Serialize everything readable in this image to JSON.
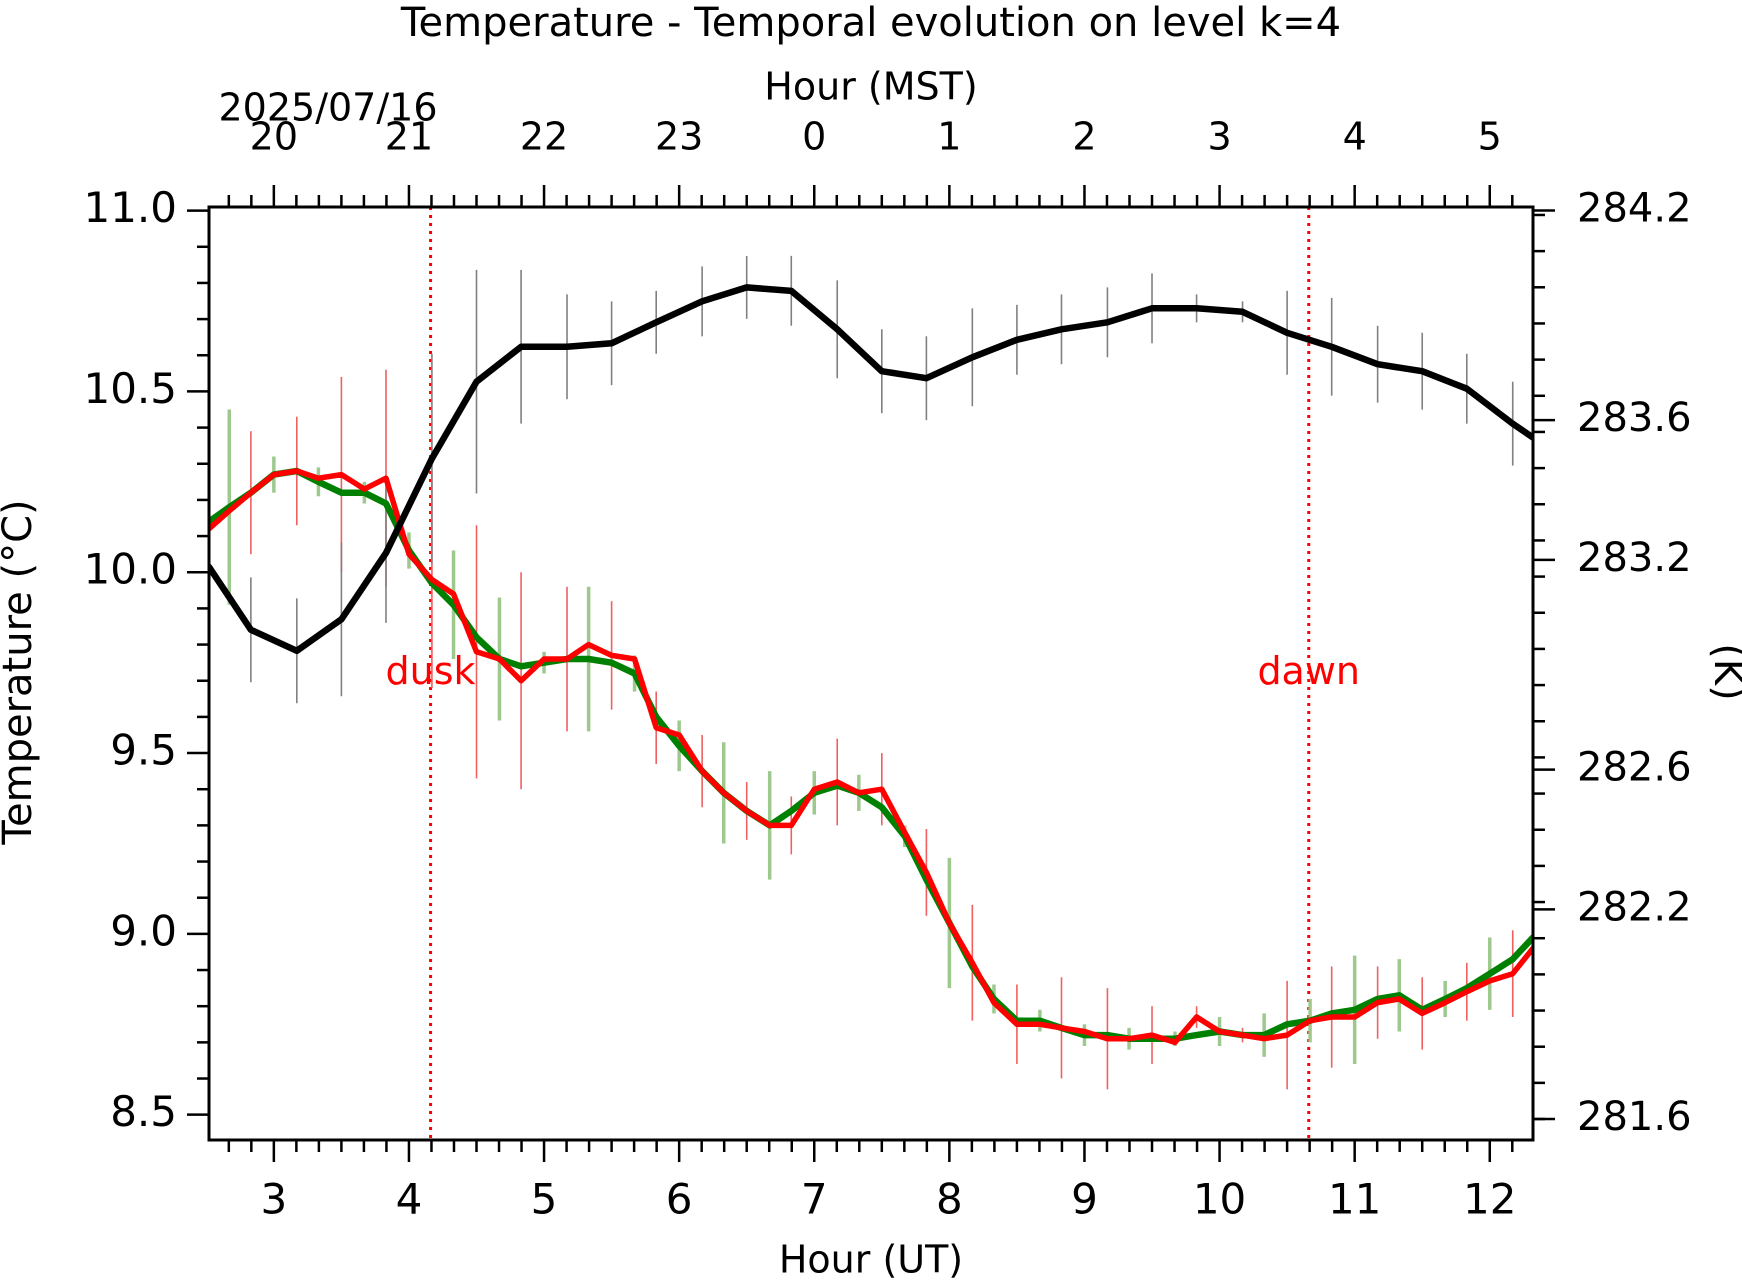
{
  "chart_data": {
    "type": "line",
    "title": "Temperature - Temporal evolution on level k=4",
    "xlabel": "Hour (UT)",
    "x2label": "Hour (MST)",
    "date_label": "2025/07/16",
    "ylabel": "Temperature (°C)",
    "y2label": "(K)",
    "xlim": [
      2.52,
      12.32
    ],
    "xticks": [
      3,
      4,
      5,
      6,
      7,
      8,
      9,
      10,
      11,
      12
    ],
    "x2ticks": [
      {
        "value": 3,
        "label": "20"
      },
      {
        "value": 4,
        "label": "21"
      },
      {
        "value": 5,
        "label": "22"
      },
      {
        "value": 6,
        "label": "23"
      },
      {
        "value": 7,
        "label": "0"
      },
      {
        "value": 8,
        "label": "1"
      },
      {
        "value": 9,
        "label": "2"
      },
      {
        "value": 10,
        "label": "3"
      },
      {
        "value": 11,
        "label": "4"
      },
      {
        "value": 12,
        "label": "5"
      }
    ],
    "ylim": [
      8.43,
      11.01
    ],
    "yticks": [
      {
        "value": 8.5,
        "label": "8.5"
      },
      {
        "value": 9,
        "label": "9.0"
      },
      {
        "value": 9.5,
        "label": "9.5"
      },
      {
        "value": 10,
        "label": "10.0"
      },
      {
        "value": 10.5,
        "label": "10.5"
      },
      {
        "value": 11,
        "label": "11.0"
      }
    ],
    "y2lim": [
      281.54,
      284.21
    ],
    "y2ticks": [
      281.6,
      282.2,
      282.6,
      283.2,
      283.6,
      284.2
    ],
    "vlines": [
      {
        "x": 4.16,
        "label": "dusk",
        "color": "#ff0000"
      },
      {
        "x": 10.66,
        "label": "dawn",
        "color": "#ff0000"
      }
    ],
    "series": [
      {
        "color": "#008000",
        "errcolor": "#9ec98e",
        "axis": "y",
        "x": [
          2.52,
          2.67,
          2.83,
          3.0,
          3.17,
          3.33,
          3.5,
          3.67,
          3.83,
          4.0,
          4.17,
          4.33,
          4.5,
          4.67,
          4.83,
          5.0,
          5.17,
          5.33,
          5.5,
          5.67,
          5.83,
          6.0,
          6.17,
          6.33,
          6.5,
          6.67,
          6.83,
          7.0,
          7.17,
          7.33,
          7.5,
          7.67,
          7.83,
          8.0,
          8.17,
          8.33,
          8.5,
          8.67,
          8.83,
          9.0,
          9.17,
          9.33,
          9.5,
          9.67,
          9.83,
          10.0,
          10.17,
          10.33,
          10.5,
          10.67,
          10.83,
          11.0,
          11.17,
          11.33,
          11.5,
          11.67,
          11.83,
          12.0,
          12.17,
          12.32
        ],
        "values": [
          10.14,
          10.18,
          10.22,
          10.27,
          10.28,
          10.25,
          10.22,
          10.22,
          10.19,
          10.06,
          9.97,
          9.91,
          9.82,
          9.76,
          9.74,
          9.75,
          9.76,
          9.76,
          9.75,
          9.72,
          9.6,
          9.52,
          9.45,
          9.39,
          9.34,
          9.3,
          9.34,
          9.39,
          9.41,
          9.39,
          9.35,
          9.27,
          9.15,
          9.03,
          8.91,
          8.82,
          8.76,
          8.76,
          8.74,
          8.72,
          8.72,
          8.71,
          8.71,
          8.71,
          8.72,
          8.73,
          8.72,
          8.72,
          8.75,
          8.76,
          8.78,
          8.79,
          8.82,
          8.83,
          8.79,
          8.82,
          8.85,
          8.89,
          8.93,
          8.99
        ],
        "errors": [
          null,
          0.27,
          null,
          0.05,
          null,
          0.04,
          null,
          0.03,
          null,
          0.05,
          null,
          0.15,
          null,
          0.17,
          null,
          0.03,
          null,
          0.2,
          null,
          0.05,
          null,
          0.07,
          null,
          0.14,
          null,
          0.15,
          null,
          0.06,
          null,
          0.05,
          null,
          0.03,
          null,
          0.18,
          null,
          0.04,
          null,
          0.03,
          null,
          0.03,
          null,
          0.03,
          null,
          0.02,
          null,
          0.04,
          null,
          0.06,
          null,
          0.06,
          null,
          0.15,
          null,
          0.1,
          null,
          0.05,
          null,
          0.1,
          null,
          null
        ]
      },
      {
        "color": "#ff0000",
        "errcolor": "#f06060",
        "axis": "y",
        "x": [
          2.52,
          2.67,
          2.83,
          3.0,
          3.17,
          3.33,
          3.5,
          3.67,
          3.83,
          4.0,
          4.17,
          4.33,
          4.5,
          4.67,
          4.83,
          5.0,
          5.17,
          5.33,
          5.5,
          5.67,
          5.83,
          6.0,
          6.17,
          6.33,
          6.5,
          6.67,
          6.83,
          7.0,
          7.17,
          7.33,
          7.5,
          7.67,
          7.83,
          8.0,
          8.17,
          8.33,
          8.5,
          8.67,
          8.83,
          9.0,
          9.17,
          9.33,
          9.5,
          9.67,
          9.83,
          10.0,
          10.17,
          10.33,
          10.5,
          10.67,
          10.83,
          11.0,
          11.17,
          11.33,
          11.5,
          11.67,
          11.83,
          12.0,
          12.17,
          12.32
        ],
        "values": [
          10.12,
          10.17,
          10.22,
          10.27,
          10.28,
          10.26,
          10.27,
          10.23,
          10.26,
          10.05,
          9.98,
          9.94,
          9.78,
          9.76,
          9.7,
          9.76,
          9.76,
          9.8,
          9.77,
          9.76,
          9.57,
          9.55,
          9.45,
          9.39,
          9.34,
          9.3,
          9.3,
          9.4,
          9.42,
          9.39,
          9.4,
          9.28,
          9.17,
          9.03,
          8.92,
          8.81,
          8.75,
          8.75,
          8.74,
          8.73,
          8.71,
          8.71,
          8.72,
          8.7,
          8.77,
          8.73,
          8.72,
          8.71,
          8.72,
          8.76,
          8.77,
          8.77,
          8.81,
          8.82,
          8.78,
          8.81,
          8.84,
          8.87,
          8.89,
          8.96
        ],
        "errors": [
          null,
          null,
          0.17,
          null,
          0.15,
          null,
          0.27,
          null,
          0.3,
          null,
          0.3,
          null,
          0.35,
          null,
          0.3,
          null,
          0.2,
          null,
          0.15,
          null,
          0.1,
          null,
          0.1,
          null,
          0.08,
          null,
          0.08,
          null,
          0.12,
          null,
          0.1,
          null,
          0.12,
          null,
          0.16,
          null,
          0.11,
          null,
          0.14,
          null,
          0.14,
          null,
          0.08,
          null,
          0.03,
          null,
          0.02,
          null,
          0.15,
          null,
          0.14,
          null,
          0.1,
          null,
          0.1,
          null,
          0.08,
          null,
          0.12,
          null
        ]
      },
      {
        "color": "#000000",
        "errcolor": "#808080",
        "axis": "y2",
        "x": [
          2.52,
          2.83,
          3.17,
          3.5,
          3.83,
          4.17,
          4.5,
          4.83,
          5.17,
          5.5,
          5.83,
          6.17,
          6.5,
          6.83,
          7.17,
          7.5,
          7.83,
          8.17,
          8.5,
          8.83,
          9.17,
          9.5,
          9.83,
          10.17,
          10.5,
          10.83,
          11.17,
          11.5,
          11.83,
          12.17,
          12.32
        ],
        "values": [
          283.18,
          283.0,
          282.94,
          283.03,
          283.22,
          283.49,
          283.71,
          283.81,
          283.81,
          283.82,
          283.88,
          283.94,
          283.98,
          283.97,
          283.86,
          283.74,
          283.72,
          283.78,
          283.83,
          283.86,
          283.88,
          283.92,
          283.92,
          283.91,
          283.85,
          283.81,
          283.76,
          283.74,
          283.69,
          283.59,
          283.55
        ],
        "errors": [
          null,
          0.15,
          0.15,
          0.22,
          0.2,
          0.3,
          0.32,
          0.22,
          0.15,
          0.12,
          0.09,
          0.1,
          0.09,
          0.1,
          0.14,
          0.12,
          0.12,
          0.14,
          0.1,
          0.1,
          0.1,
          0.1,
          0.04,
          0.03,
          0.12,
          0.14,
          0.11,
          0.11,
          0.1,
          0.12,
          null
        ]
      }
    ]
  }
}
